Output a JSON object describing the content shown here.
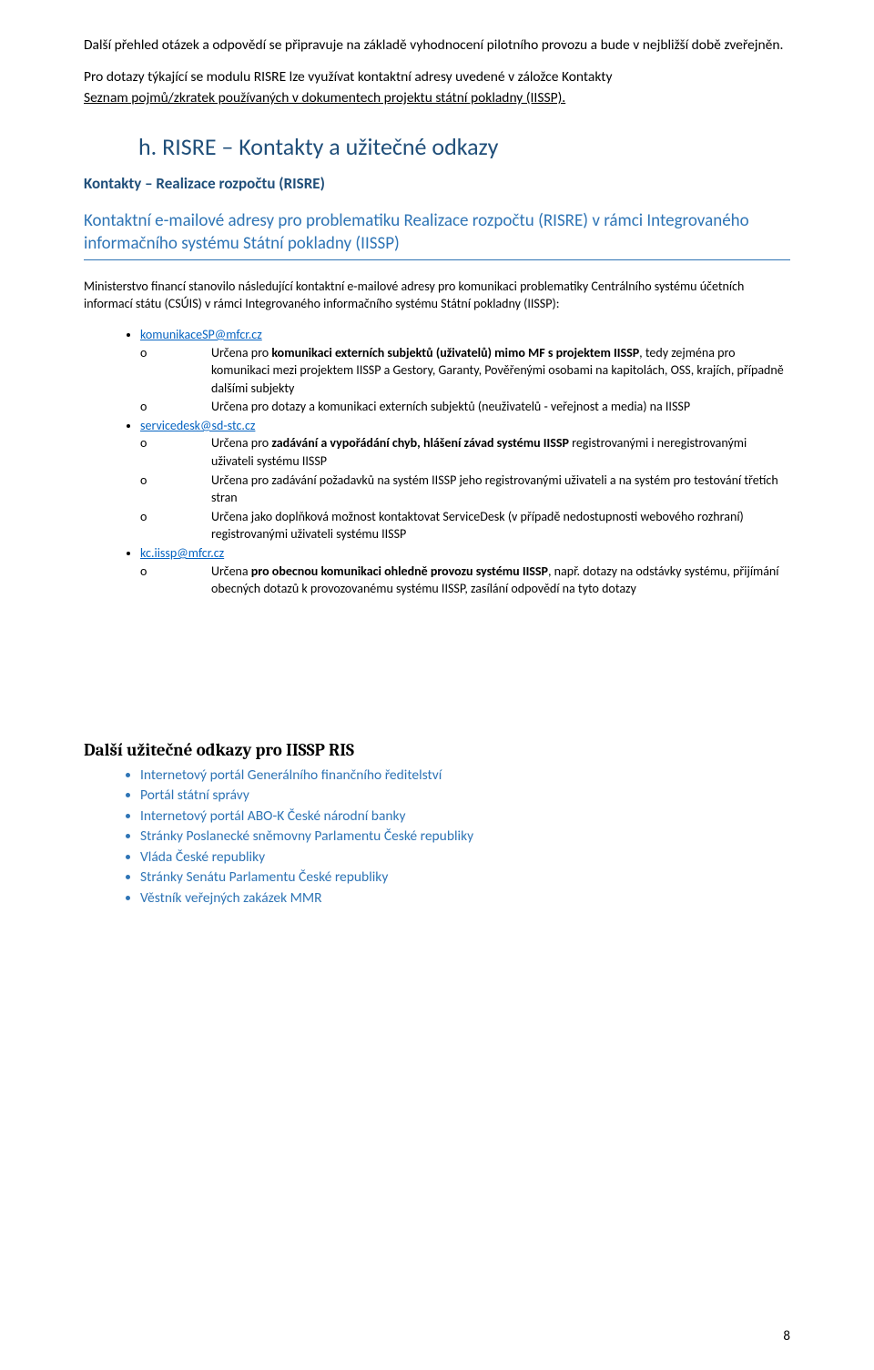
{
  "intro": {
    "p1": "Další přehled otázek a odpovědí se připravuje na základě vyhodnocení pilotního provozu a bude v nejbližší době zveřejněn.",
    "p2": "Pro dotazy týkající se modulu RISRE lze využívat kontaktní adresy uvedené v záložce Kontakty",
    "p3": "Seznam pojmů/zkratek používaných v dokumentech projektu státní pokladny (IISSP)."
  },
  "section_h": {
    "title": "h. RISRE – Kontakty a užitečné odkazy",
    "subtitle": "Kontakty – Realizace rozpočtu  (RISRE)",
    "lead": "Kontaktní e-mailové adresy pro problematiku Realizace rozpočtu (RISRE) v rámci Integrovaného informačního systému Státní pokladny (IISSP)",
    "desc": "Ministerstvo financí stanovilo následující kontaktní e-mailové adresy pro komunikaci problematiky Centrálního systému účetních informací státu (CSÚIS) v rámci Integrovaného informačního systému Státní pokladny (IISSP):"
  },
  "contacts": [
    {
      "email": "komunikaceSP@mfcr.cz",
      "points": [
        {
          "pre": "Určena pro ",
          "bold": "komunikaci externích subjektů (uživatelů) mimo MF s projektem IISSP",
          "post": ", tedy zejména pro komunikaci mezi projektem IISSP a  Gestory, Garanty, Pověřenými osobami na kapitolách, OSS, krajích, případně dalšími subjekty"
        },
        {
          "pre": "Určena pro dotazy a komunikaci externích subjektů (neuživatelů - veřejnost a media) na  IISSP",
          "bold": "",
          "post": ""
        }
      ]
    },
    {
      "email": "servicedesk@sd-stc.cz",
      "points": [
        {
          "pre": "Určena pro ",
          "bold": "zadávání a vypořádání chyb, hlášení závad systému IISSP",
          "post": " registrovanými i neregistrovanými uživateli systému IISSP"
        },
        {
          "pre": "Určena pro zadávání požadavků na systém IISSP jeho registrovanými uživateli a na systém pro testování třetích stran",
          "bold": "",
          "post": ""
        },
        {
          "pre": "Určena jako doplňková možnost kontaktovat ServiceDesk (v případě nedostupnosti webového rozhraní) registrovanými uživateli systému IISSP",
          "bold": "",
          "post": ""
        }
      ]
    },
    {
      "email": "kc.iissp@mfcr.cz",
      "points": [
        {
          "pre": "Určena ",
          "bold": "pro obecnou komunikaci ohledně provozu systému IISSP",
          "post": ", např. dotazy na odstávky systému, přijímání obecných dotazů k provozovanému systému IISSP, zasílání odpovědí na tyto dotazy"
        }
      ]
    }
  ],
  "links_section": {
    "title": "Další užitečné odkazy pro IISSP RIS",
    "items": [
      "Internetový portál Generálního finančního ředitelství",
      "Portál státní správy",
      "Internetový portál ABO-K České národní banky",
      "Stránky Poslanecké sněmovny Parlamentu České republiky",
      "Vláda České republiky",
      "Stránky Senátu Parlamentu České republiky",
      "Věstník veřejných zakázek MMR"
    ]
  },
  "page_number": "8"
}
